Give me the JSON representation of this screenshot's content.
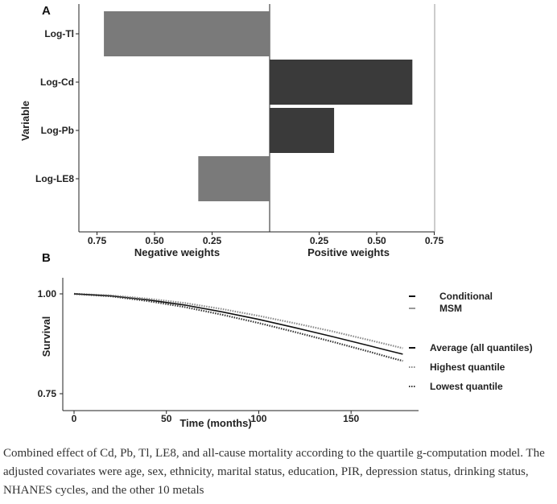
{
  "chart_data": [
    {
      "panel": "A",
      "type": "bar",
      "orientation": "horizontal",
      "ylabel": "Variable",
      "categories": [
        "Log-Tl",
        "Log-Cd",
        "Log-Pb",
        "Log-LE8"
      ],
      "series": [
        {
          "name": "Negative weights",
          "values": [
            0.72,
            0,
            0,
            0.31
          ]
        },
        {
          "name": "Positive weights",
          "values": [
            0,
            0.62,
            0.28,
            0
          ]
        }
      ],
      "negative_ticks": [
        "0.75",
        "0.50",
        "0.25"
      ],
      "positive_ticks": [
        "0.25",
        "0.50",
        "0.75"
      ],
      "negative_tick_values": [
        0.75,
        0.5,
        0.25
      ],
      "positive_tick_values": [
        0.25,
        0.5,
        0.75
      ],
      "negative_axis_label": "Negative weights",
      "positive_axis_label": "Positive weights",
      "xlim": [
        0,
        0.8
      ],
      "colors": {
        "negative": "#7a7a7a",
        "positive": "#3a3a3a"
      }
    },
    {
      "panel": "B",
      "type": "line",
      "xlabel": "Time (months)",
      "ylabel": "Survival",
      "xlim": [
        0,
        180
      ],
      "ylim": [
        0.75,
        1.0
      ],
      "xticks": [
        "0",
        "50",
        "100",
        "150"
      ],
      "xtick_values": [
        0,
        50,
        100,
        150
      ],
      "yticks": [
        "1.00",
        "0.75"
      ],
      "ytick_values": [
        1.0,
        0.75
      ],
      "legend_position": "right",
      "series": [
        {
          "name": "Average (all quantiles)",
          "style": "solid",
          "color": "#111111",
          "x": [
            0,
            20,
            40,
            60,
            80,
            100,
            120,
            140,
            160,
            170,
            178
          ],
          "y": [
            1.0,
            0.995,
            0.985,
            0.972,
            0.955,
            0.936,
            0.915,
            0.893,
            0.87,
            0.858,
            0.849
          ]
        },
        {
          "name": "Highest quantile",
          "style": "dotted",
          "color": "#888888",
          "x": [
            0,
            20,
            40,
            60,
            80,
            100,
            120,
            140,
            160,
            170,
            178
          ],
          "y": [
            1.0,
            0.996,
            0.988,
            0.977,
            0.962,
            0.945,
            0.926,
            0.906,
            0.884,
            0.873,
            0.864
          ]
        },
        {
          "name": "Lowest quantile",
          "style": "dotted",
          "color": "#333333",
          "x": [
            0,
            20,
            40,
            60,
            80,
            100,
            120,
            140,
            160,
            170,
            178
          ],
          "y": [
            1.0,
            0.994,
            0.982,
            0.967,
            0.948,
            0.927,
            0.904,
            0.88,
            0.855,
            0.842,
            0.832
          ]
        }
      ],
      "legend_groups": [
        {
          "name": "Conditional",
          "style": "solid",
          "color": "#111111"
        },
        {
          "name": "MSM",
          "style": "solid",
          "color": "#999999"
        }
      ]
    }
  ],
  "panel_labels": {
    "a": "A",
    "b": "B"
  },
  "caption": "Combined effect of Cd, Pb, Tl, LE8, and all-cause mortality according to the quartile g-computation model. The adjusted covariates were age, sex, ethnicity, marital status, education, PIR, depression status, drinking status, NHANES cycles, and the other 10 metals"
}
